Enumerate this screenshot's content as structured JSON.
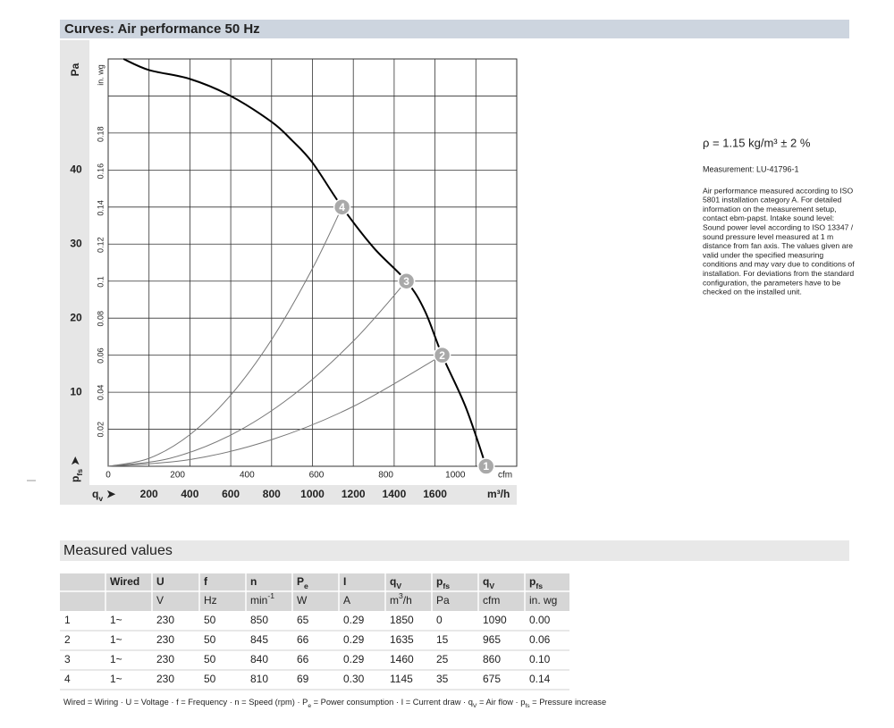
{
  "header": {
    "title": "Curves: Air performance 50 Hz"
  },
  "chart_data": {
    "type": "line",
    "x_unit": "m³/h",
    "x2_unit": "cfm",
    "y_unit": "Pa",
    "y2_unit": "in. wg",
    "x_symbol": {
      "text": "q",
      "sub": "v",
      "suffix": "➤"
    },
    "y_symbol": {
      "text": "p",
      "sub": "fs",
      "suffix": "➤"
    },
    "xlim": [
      0,
      2000
    ],
    "xticks": [
      200,
      400,
      600,
      800,
      1000,
      1200,
      1400,
      1600
    ],
    "xgrid": [
      200,
      400,
      600,
      800,
      1000,
      1200,
      1400,
      1600,
      1800
    ],
    "x2lim": [
      0,
      1177
    ],
    "x2ticks": [
      0,
      200,
      400,
      600,
      800,
      1000
    ],
    "ylim": [
      0,
      55
    ],
    "yticks": [
      10,
      20,
      30,
      40
    ],
    "ygrid": [
      5,
      10,
      15,
      20,
      25,
      30,
      35,
      40,
      45,
      50
    ],
    "y2lim": [
      0,
      0.2208
    ],
    "y2ticks": [
      0.02,
      0.04,
      0.06,
      0.08,
      0.1,
      0.12,
      0.14,
      0.16,
      0.18
    ],
    "grid": true,
    "series": [
      {
        "color": "#000000",
        "x": [
          75,
          200,
          400,
          600,
          800,
          900,
          1000,
          1145,
          1300,
          1460,
          1550,
          1635,
          1750,
          1850
        ],
        "values": [
          55,
          53.5,
          52.3,
          50,
          46.5,
          44,
          41,
          35,
          29.5,
          25,
          21,
          15,
          8,
          0
        ]
      },
      {
        "color": "#777777",
        "x": [
          0,
          400,
          800,
          1200,
          1635
        ],
        "values": [
          0,
          0.9,
          3.59,
          8.08,
          15
        ]
      },
      {
        "color": "#777777",
        "x": [
          0,
          300,
          600,
          900,
          1200,
          1460
        ],
        "values": [
          0,
          1.06,
          4.22,
          9.5,
          16.9,
          25
        ]
      },
      {
        "color": "#777777",
        "x": [
          0,
          200,
          400,
          600,
          800,
          1000,
          1145
        ],
        "values": [
          0,
          1.07,
          4.27,
          9.61,
          17.1,
          26.7,
          35
        ]
      }
    ],
    "points": [
      {
        "label": "1",
        "x": 1850,
        "y": 0
      },
      {
        "label": "2",
        "x": 1635,
        "y": 15
      },
      {
        "label": "3",
        "x": 1460,
        "y": 25
      },
      {
        "label": "4",
        "x": 1145,
        "y": 35
      }
    ]
  },
  "notes": {
    "density": "ρ = 1.15 kg/m³ ± 2 %",
    "measurement": "Measurement: LU-41796-1",
    "description": [
      "Air performance measured according to ISO",
      "5801 installation category A. For detailed",
      "information on the measurement setup,",
      "contact ebm-papst. Intake sound level:",
      "Sound power level according to ISO 13347 /",
      "sound pressure level measured at 1 m",
      "distance from fan axis. The values given are",
      "valid under the specified measuring",
      "conditions and may vary due to conditions of",
      "installation. For deviations from the standard",
      "configuration, the parameters have to be",
      "checked on the installed unit."
    ]
  },
  "measured": {
    "title": "Measured values",
    "columns": [
      null,
      "Wired",
      "U",
      "f",
      "n",
      {
        "text": "P",
        "sub": "e"
      },
      "I",
      {
        "text": "q",
        "sub": "V"
      },
      {
        "text": "p",
        "sub": "fs"
      },
      {
        "text": "q",
        "sub": "V"
      },
      {
        "text": "p",
        "sub": "fs"
      }
    ],
    "units": [
      null,
      null,
      "V",
      "Hz",
      {
        "text": "min",
        "sup": "-1"
      },
      "W",
      "A",
      {
        "text": "m",
        "sup": "3",
        "suffix": "/h"
      },
      "Pa",
      "cfm",
      "in. wg"
    ],
    "rows": [
      [
        "1",
        "1~",
        "230",
        "50",
        "850",
        "65",
        "0.29",
        "1850",
        "0",
        "1090",
        "0.00"
      ],
      [
        "2",
        "1~",
        "230",
        "50",
        "845",
        "66",
        "0.29",
        "1635",
        "15",
        "965",
        "0.06"
      ],
      [
        "3",
        "1~",
        "230",
        "50",
        "840",
        "66",
        "0.29",
        "1460",
        "25",
        "860",
        "0.10"
      ],
      [
        "4",
        "1~",
        "230",
        "50",
        "810",
        "69",
        "0.30",
        "1145",
        "35",
        "675",
        "0.14"
      ]
    ],
    "footnote": [
      {
        "text": "Wired = Wiring · U = Voltage · f = Frequency · n = Speed (rpm) · P"
      },
      {
        "sub": "e"
      },
      {
        "text": " = Power consumption · I = Current draw · q"
      },
      {
        "sub": "V"
      },
      {
        "text": " = Air flow · p"
      },
      {
        "sub": "fs"
      },
      {
        "text": " = Pressure increase"
      }
    ]
  }
}
